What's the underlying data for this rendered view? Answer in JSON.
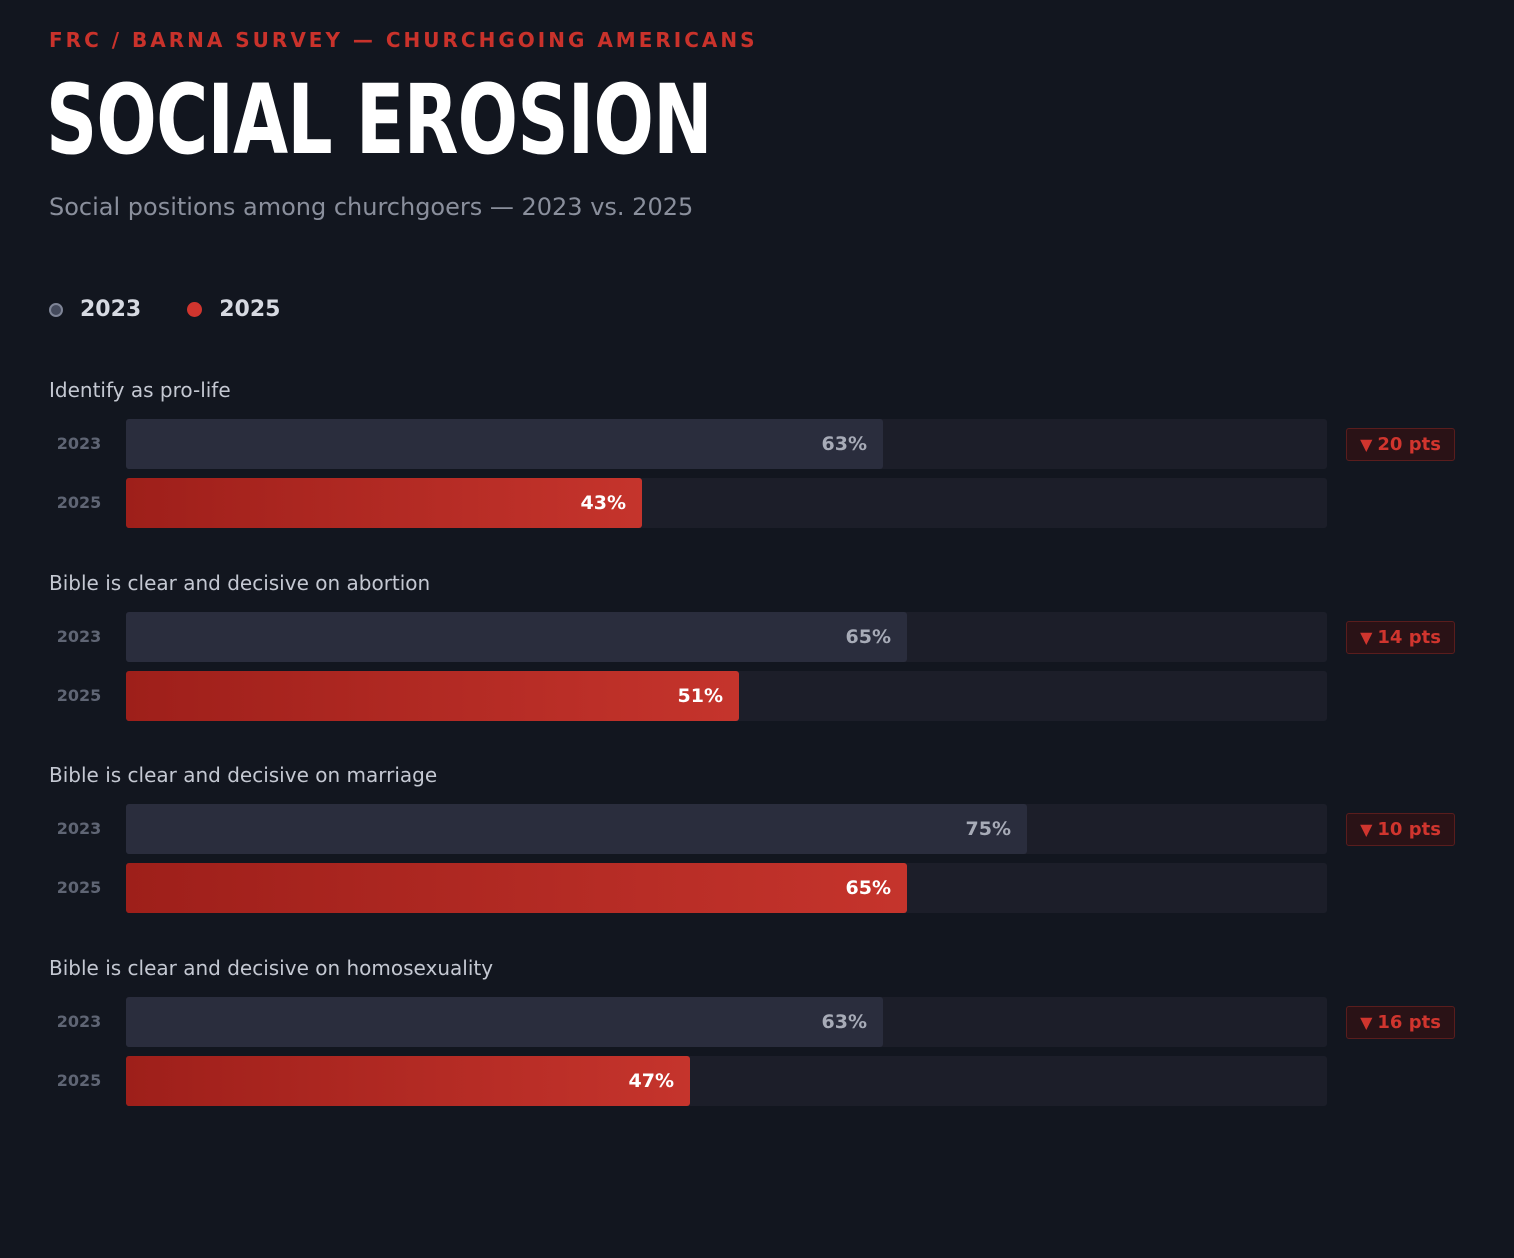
{
  "kicker": "FRC / BARNA SURVEY — CHURCHGOING AMERICANS",
  "title": "SOCIAL EROSION",
  "subtitle": "Social positions among churchgoers — 2023 vs. 2025",
  "legend": [
    {
      "label": "2023",
      "color": "#7e8496"
    },
    {
      "label": "2025",
      "color": "#d0352e"
    }
  ],
  "colors": {
    "background": "#12161f",
    "bar_2023": "#2a2d3d",
    "bar_2025": "#c5342c",
    "accent": "#d0352e"
  },
  "chart_data": {
    "type": "bar",
    "orientation": "horizontal",
    "categories": [
      "Identify as pro-life",
      "Bible is clear and decisive on abortion",
      "Bible is clear and decisive on marriage",
      "Bible is clear and decisive on homosexuality"
    ],
    "series": [
      {
        "name": "2023",
        "values": [
          63,
          65,
          75,
          63
        ],
        "labels": [
          "63%",
          "65%",
          "75%",
          "63%"
        ]
      },
      {
        "name": "2025",
        "values": [
          43,
          51,
          65,
          47
        ],
        "labels": [
          "43%",
          "51%",
          "65%",
          "47%"
        ]
      }
    ],
    "row_labels": [
      "2023",
      "2025"
    ],
    "changes": [
      {
        "icon": "down-triangle-icon",
        "glyph": "▼",
        "text": "20 pts"
      },
      {
        "icon": "down-triangle-icon",
        "glyph": "▼",
        "text": "14 pts"
      },
      {
        "icon": "down-triangle-icon",
        "glyph": "▼",
        "text": "10 pts"
      },
      {
        "icon": "down-triangle-icon",
        "glyph": "▼",
        "text": "16 pts"
      }
    ],
    "xlim": [
      0,
      100
    ],
    "grid": false,
    "legend_position": "top-left"
  }
}
